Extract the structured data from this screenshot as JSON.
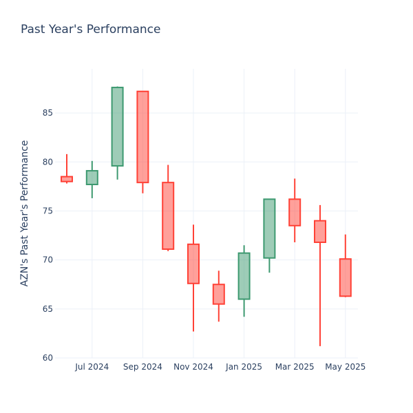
{
  "chart_data": {
    "type": "candlestick",
    "title": "Past Year's Performance",
    "xlabel": "",
    "ylabel": "AZN's Past Year's Performance",
    "ylim": [
      60,
      89.5
    ],
    "y_ticks": [
      60,
      65,
      70,
      75,
      80,
      85
    ],
    "x_ticks": [
      "Jul 2024",
      "Sep 2024",
      "Nov 2024",
      "Jan 2025",
      "Mar 2025",
      "May 2025"
    ],
    "grid": true,
    "colors": {
      "increasing": "#3d9970",
      "decreasing": "#ff4136",
      "increasing_fill": "rgba(61,153,112,0.5)",
      "decreasing_fill": "rgba(255,65,54,0.5)"
    },
    "candles": [
      {
        "date": "2024-06",
        "open": 78.5,
        "high": 80.8,
        "low": 77.8,
        "close": 78.0
      },
      {
        "date": "2024-07",
        "open": 77.7,
        "high": 80.1,
        "low": 76.3,
        "close": 79.1
      },
      {
        "date": "2024-08",
        "open": 79.6,
        "high": 87.7,
        "low": 78.2,
        "close": 87.6
      },
      {
        "date": "2024-09",
        "open": 87.2,
        "high": 87.2,
        "low": 76.8,
        "close": 77.9
      },
      {
        "date": "2024-10",
        "open": 77.9,
        "high": 79.7,
        "low": 70.9,
        "close": 71.1
      },
      {
        "date": "2024-11",
        "open": 71.6,
        "high": 73.6,
        "low": 62.7,
        "close": 67.6
      },
      {
        "date": "2024-12",
        "open": 67.5,
        "high": 68.9,
        "low": 63.7,
        "close": 65.5
      },
      {
        "date": "2025-01",
        "open": 66.0,
        "high": 71.5,
        "low": 64.2,
        "close": 70.7
      },
      {
        "date": "2025-02",
        "open": 70.2,
        "high": 76.2,
        "low": 68.7,
        "close": 76.2
      },
      {
        "date": "2025-03",
        "open": 76.2,
        "high": 78.3,
        "low": 71.8,
        "close": 73.5
      },
      {
        "date": "2025-04",
        "open": 74.0,
        "high": 75.6,
        "low": 61.2,
        "close": 71.8
      },
      {
        "date": "2025-05",
        "open": 70.1,
        "high": 72.6,
        "low": 66.2,
        "close": 66.3
      }
    ]
  }
}
